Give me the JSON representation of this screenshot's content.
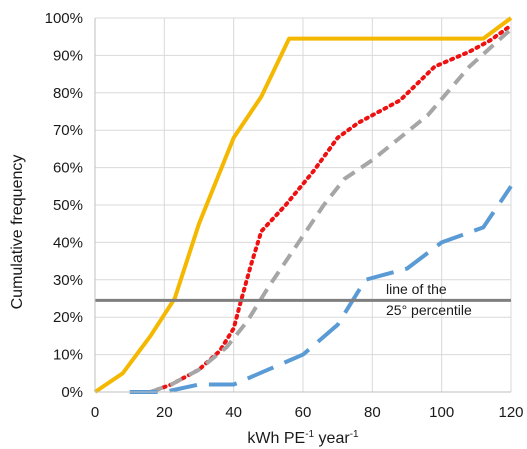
{
  "chart_data": {
    "type": "line",
    "title": "",
    "xlabel": "kWh PE",
    "xlabel_sup1": "-1",
    "xlabel_mid": " year",
    "xlabel_sup2": "-1",
    "ylabel": "Cumulative frequency",
    "xlim": [
      0,
      120
    ],
    "ylim": [
      0,
      100
    ],
    "x_ticks": [
      0,
      20,
      40,
      60,
      80,
      100,
      120
    ],
    "x_tick_labels": [
      "0",
      "20",
      "40",
      "60",
      "80",
      "100",
      "120"
    ],
    "y_ticks": [
      0,
      10,
      20,
      30,
      40,
      50,
      60,
      70,
      80,
      90,
      100
    ],
    "y_tick_labels": [
      "0%",
      "10%",
      "20%",
      "30%",
      "40%",
      "50%",
      "60%",
      "70%",
      "80%",
      "90%",
      "100%"
    ],
    "grid": true,
    "legend": "none",
    "series": [
      {
        "style": "solid",
        "color": "#f5b800",
        "points": [
          [
            0,
            0
          ],
          [
            8,
            5
          ],
          [
            16,
            15
          ],
          [
            23,
            25
          ],
          [
            30,
            45
          ],
          [
            40,
            68
          ],
          [
            48,
            79
          ],
          [
            56,
            94.5
          ],
          [
            112,
            94.5
          ],
          [
            120,
            100
          ]
        ]
      },
      {
        "style": "dotted",
        "color": "#ee1111",
        "points": [
          [
            16,
            0
          ],
          [
            22,
            2
          ],
          [
            30,
            6
          ],
          [
            36,
            11
          ],
          [
            40,
            17
          ],
          [
            42,
            24
          ],
          [
            45,
            34
          ],
          [
            48,
            43
          ],
          [
            55,
            50
          ],
          [
            63,
            59
          ],
          [
            70,
            68
          ],
          [
            76,
            72
          ],
          [
            88,
            78
          ],
          [
            98,
            87
          ],
          [
            108,
            91
          ],
          [
            114,
            94
          ],
          [
            120,
            98
          ]
        ]
      },
      {
        "style": "dashed",
        "color": "#a6a6a6",
        "points": [
          [
            16,
            0
          ],
          [
            22,
            2
          ],
          [
            30,
            6
          ],
          [
            38,
            12
          ],
          [
            44,
            19
          ],
          [
            50,
            28
          ],
          [
            58,
            39
          ],
          [
            66,
            50
          ],
          [
            72,
            57
          ],
          [
            80,
            62
          ],
          [
            96,
            74
          ],
          [
            108,
            87
          ],
          [
            120,
            97
          ]
        ]
      },
      {
        "style": "longdash",
        "color": "#5b9bd5",
        "points": [
          [
            10,
            0
          ],
          [
            20,
            0
          ],
          [
            30,
            2
          ],
          [
            40,
            2
          ],
          [
            50,
            6
          ],
          [
            60,
            10
          ],
          [
            70,
            18
          ],
          [
            78,
            30
          ],
          [
            90,
            33
          ],
          [
            100,
            40
          ],
          [
            112,
            44
          ],
          [
            120,
            55
          ]
        ]
      },
      {
        "style": "solid",
        "color": "#7f7f7f",
        "points": [
          [
            0,
            24.5
          ],
          [
            120,
            24.5
          ]
        ]
      }
    ],
    "annotation": {
      "line1": "line of the",
      "line2": "25° percentile"
    }
  }
}
